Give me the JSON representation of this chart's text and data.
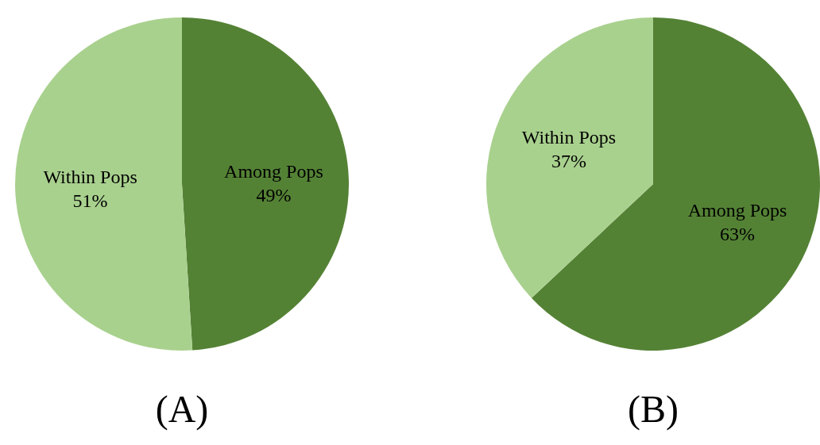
{
  "chart_data": [
    {
      "type": "pie",
      "title": "(A)",
      "categories": [
        "Among Pops",
        "Within Pops"
      ],
      "values": [
        49,
        51
      ],
      "colors": [
        "#548235",
        "#a9d18e"
      ],
      "value_labels": [
        "49%",
        "51%"
      ]
    },
    {
      "type": "pie",
      "title": "(B)",
      "categories": [
        "Among Pops",
        "Within Pops"
      ],
      "values": [
        63,
        37
      ],
      "colors": [
        "#548235",
        "#a9d18e"
      ],
      "value_labels": [
        "63%",
        "37%"
      ]
    }
  ]
}
